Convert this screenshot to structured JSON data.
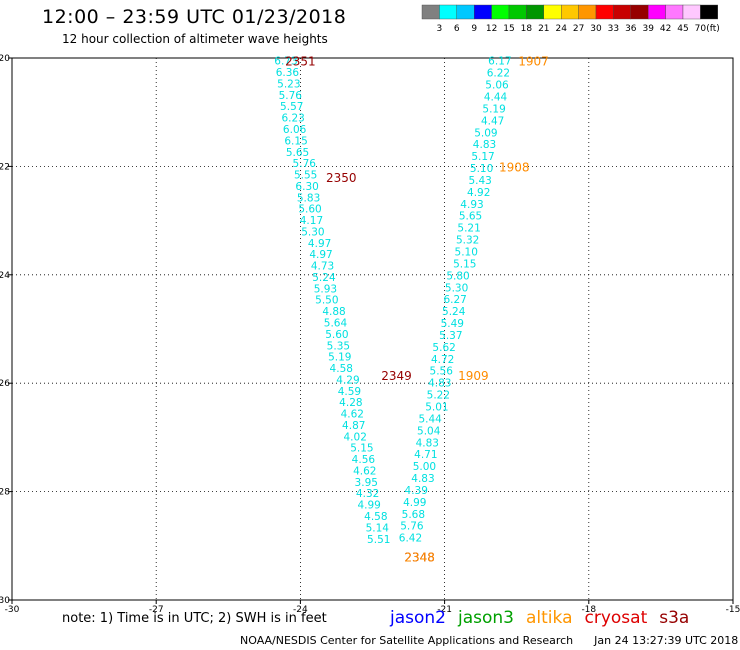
{
  "header": {
    "title": "12:00 – 23:59 UTC 01/23/2018",
    "subtitle": "12 hour collection of altimeter wave heights"
  },
  "colorbar": {
    "segments": [
      {
        "color": "#808080",
        "label": "3"
      },
      {
        "color": "#00ffff",
        "label": "6"
      },
      {
        "color": "#00c8ff",
        "label": "9"
      },
      {
        "color": "#0000ff",
        "label": "12"
      },
      {
        "color": "#00ff00",
        "label": "15"
      },
      {
        "color": "#00c800",
        "label": "18"
      },
      {
        "color": "#009600",
        "label": "21"
      },
      {
        "color": "#ffff00",
        "label": "24"
      },
      {
        "color": "#ffc800",
        "label": "27"
      },
      {
        "color": "#ff9600",
        "label": "30"
      },
      {
        "color": "#ff0000",
        "label": "33"
      },
      {
        "color": "#c80000",
        "label": "36"
      },
      {
        "color": "#960000",
        "label": "39"
      },
      {
        "color": "#ff00ff",
        "label": "42"
      },
      {
        "color": "#ff78ff",
        "label": "45"
      },
      {
        "color": "#ffc8ff",
        "label": "70"
      },
      {
        "color": "#000000",
        "label": ""
      }
    ],
    "unit": "(ft)"
  },
  "note_text": "note:  1) Time is in UTC;  2) SWH is in feet",
  "satellites": [
    {
      "name": "jason2",
      "color": "#0000ff"
    },
    {
      "name": "jason3",
      "color": "#00a000"
    },
    {
      "name": "altika",
      "color": "#ff9600"
    },
    {
      "name": "cryosat",
      "color": "#dd0000"
    },
    {
      "name": "s3a",
      "color": "#960000"
    }
  ],
  "footer": {
    "credit": "NOAA/NESDIS Center for Satellite Applications and Research",
    "timestamp": "Jan 24 13:27:39 UTC 2018"
  },
  "chart_data": {
    "type": "scatter",
    "xlim": [
      -30,
      -15
    ],
    "ylim": [
      -30,
      -20
    ],
    "x_ticks": [
      -30,
      -27,
      -24,
      -21,
      -18,
      -15
    ],
    "y_ticks": [
      -20,
      -22,
      -24,
      -26,
      -28,
      -30
    ],
    "grid": true,
    "series": [
      {
        "name": "s3a",
        "color": "#00e0e0",
        "points": [
          {
            "x": -24.3,
            "y": -20.05,
            "v": "6.73"
          },
          {
            "x": -24.27,
            "y": -20.26,
            "v": "6.36"
          },
          {
            "x": -24.24,
            "y": -20.47,
            "v": "5.23"
          },
          {
            "x": -24.21,
            "y": -20.68,
            "v": "5.76"
          },
          {
            "x": -24.18,
            "y": -20.89,
            "v": "5.57"
          },
          {
            "x": -24.15,
            "y": -21.1,
            "v": "6.23"
          },
          {
            "x": -24.12,
            "y": -21.31,
            "v": "6.06"
          },
          {
            "x": -24.09,
            "y": -21.52,
            "v": "6.15"
          },
          {
            "x": -24.06,
            "y": -21.73,
            "v": "5.65"
          },
          {
            "x": -23.92,
            "y": -21.94,
            "v": "5.76"
          },
          {
            "x": -23.89,
            "y": -22.15,
            "v": "5.55"
          },
          {
            "x": -23.86,
            "y": -22.36,
            "v": "6.30"
          },
          {
            "x": -23.83,
            "y": -22.57,
            "v": "5.83"
          },
          {
            "x": -23.8,
            "y": -22.78,
            "v": "5.60"
          },
          {
            "x": -23.77,
            "y": -22.99,
            "v": "4.17"
          },
          {
            "x": -23.74,
            "y": -23.2,
            "v": "5.30"
          },
          {
            "x": -23.6,
            "y": -23.41,
            "v": "4.97"
          },
          {
            "x": -23.57,
            "y": -23.62,
            "v": "4.97"
          },
          {
            "x": -23.54,
            "y": -23.83,
            "v": "4.73"
          },
          {
            "x": -23.51,
            "y": -24.04,
            "v": "5.24"
          },
          {
            "x": -23.48,
            "y": -24.25,
            "v": "5.93"
          },
          {
            "x": -23.45,
            "y": -24.46,
            "v": "5.50"
          },
          {
            "x": -23.3,
            "y": -24.67,
            "v": "4.88"
          },
          {
            "x": -23.27,
            "y": -24.88,
            "v": "5.64"
          },
          {
            "x": -23.24,
            "y": -25.09,
            "v": "5.60"
          },
          {
            "x": -23.21,
            "y": -25.3,
            "v": "5.35"
          },
          {
            "x": -23.18,
            "y": -25.51,
            "v": "5.19"
          },
          {
            "x": -23.15,
            "y": -25.72,
            "v": "4.58"
          },
          {
            "x": -23.01,
            "y": -25.93,
            "v": "4.29"
          },
          {
            "x": -22.98,
            "y": -26.14,
            "v": "4.59"
          },
          {
            "x": -22.95,
            "y": -26.35,
            "v": "4.28"
          },
          {
            "x": -22.92,
            "y": -26.56,
            "v": "4.62"
          },
          {
            "x": -22.89,
            "y": -26.77,
            "v": "4.87"
          },
          {
            "x": -22.86,
            "y": -26.98,
            "v": "4.02"
          },
          {
            "x": -22.72,
            "y": -27.19,
            "v": "5.15"
          },
          {
            "x": -22.69,
            "y": -27.4,
            "v": "4.56"
          },
          {
            "x": -22.66,
            "y": -27.61,
            "v": "4.62"
          },
          {
            "x": -22.63,
            "y": -27.82,
            "v": "3.95"
          },
          {
            "x": -22.6,
            "y": -28.03,
            "v": "4.32"
          },
          {
            "x": -22.57,
            "y": -28.24,
            "v": "4.99"
          },
          {
            "x": -22.43,
            "y": -28.45,
            "v": "4.58"
          },
          {
            "x": -22.4,
            "y": -28.66,
            "v": "5.14"
          },
          {
            "x": -22.37,
            "y": -28.87,
            "v": "5.51"
          }
        ]
      },
      {
        "name": "cryosat",
        "color": "#00e0e0",
        "points": [
          {
            "x": -19.85,
            "y": -20.05,
            "v": "6.17"
          },
          {
            "x": -19.88,
            "y": -20.27,
            "v": "6.22"
          },
          {
            "x": -19.91,
            "y": -20.49,
            "v": "5.06"
          },
          {
            "x": -19.94,
            "y": -20.71,
            "v": "4.44"
          },
          {
            "x": -19.97,
            "y": -20.93,
            "v": "5.19"
          },
          {
            "x": -20.0,
            "y": -21.15,
            "v": "4.47"
          },
          {
            "x": -20.14,
            "y": -21.37,
            "v": "5.09"
          },
          {
            "x": -20.17,
            "y": -21.59,
            "v": "4.83"
          },
          {
            "x": -20.2,
            "y": -21.81,
            "v": "5.17"
          },
          {
            "x": -20.23,
            "y": -22.03,
            "v": "5.10"
          },
          {
            "x": -20.26,
            "y": -22.25,
            "v": "5.43"
          },
          {
            "x": -20.29,
            "y": -22.47,
            "v": "4.92"
          },
          {
            "x": -20.43,
            "y": -22.69,
            "v": "4.93"
          },
          {
            "x": -20.46,
            "y": -22.91,
            "v": "5.65"
          },
          {
            "x": -20.49,
            "y": -23.13,
            "v": "5.21"
          },
          {
            "x": -20.52,
            "y": -23.35,
            "v": "5.32"
          },
          {
            "x": -20.55,
            "y": -23.57,
            "v": "5.10"
          },
          {
            "x": -20.58,
            "y": -23.79,
            "v": "5.15"
          },
          {
            "x": -20.72,
            "y": -24.01,
            "v": "5.80"
          },
          {
            "x": -20.75,
            "y": -24.23,
            "v": "5.30"
          },
          {
            "x": -20.78,
            "y": -24.45,
            "v": "6.27"
          },
          {
            "x": -20.81,
            "y": -24.67,
            "v": "5.24"
          },
          {
            "x": -20.84,
            "y": -24.89,
            "v": "5.49"
          },
          {
            "x": -20.87,
            "y": -25.11,
            "v": "5.37"
          },
          {
            "x": -21.01,
            "y": -25.33,
            "v": "5.62"
          },
          {
            "x": -21.04,
            "y": -25.55,
            "v": "4.72"
          },
          {
            "x": -21.07,
            "y": -25.77,
            "v": "5.56"
          },
          {
            "x": -21.1,
            "y": -25.99,
            "v": "4.83"
          },
          {
            "x": -21.13,
            "y": -26.21,
            "v": "5.22"
          },
          {
            "x": -21.16,
            "y": -26.43,
            "v": "5.01"
          },
          {
            "x": -21.3,
            "y": -26.65,
            "v": "5.44"
          },
          {
            "x": -21.33,
            "y": -26.87,
            "v": "5.04"
          },
          {
            "x": -21.36,
            "y": -27.09,
            "v": "4.83"
          },
          {
            "x": -21.39,
            "y": -27.31,
            "v": "4.71"
          },
          {
            "x": -21.42,
            "y": -27.53,
            "v": "5.00"
          },
          {
            "x": -21.45,
            "y": -27.75,
            "v": "4.83"
          },
          {
            "x": -21.59,
            "y": -27.97,
            "v": "4.39"
          },
          {
            "x": -21.62,
            "y": -28.19,
            "v": "4.99"
          },
          {
            "x": -21.65,
            "y": -28.41,
            "v": "5.68"
          },
          {
            "x": -21.68,
            "y": -28.63,
            "v": "5.76"
          },
          {
            "x": -21.71,
            "y": -28.85,
            "v": "6.42"
          }
        ]
      },
      {
        "name": "s3a",
        "color": "#960000",
        "track_labels": [
          {
            "x": -24.0,
            "y": -20.05,
            "v": "2351"
          },
          {
            "x": -23.15,
            "y": -22.2,
            "v": "2350"
          },
          {
            "x": -22.0,
            "y": -25.85,
            "v": "2349"
          },
          {
            "x": -21.52,
            "y": -29.2,
            "v": "2348"
          }
        ]
      },
      {
        "name": "altika",
        "color": "#ff8c00",
        "track_labels": [
          {
            "x": -19.15,
            "y": -20.05,
            "v": "1907"
          },
          {
            "x": -19.55,
            "y": -22.0,
            "v": "1908"
          },
          {
            "x": -20.4,
            "y": -25.85,
            "v": "1909"
          },
          {
            "x": -21.52,
            "y": -29.2,
            "v": "2348"
          }
        ]
      }
    ]
  }
}
